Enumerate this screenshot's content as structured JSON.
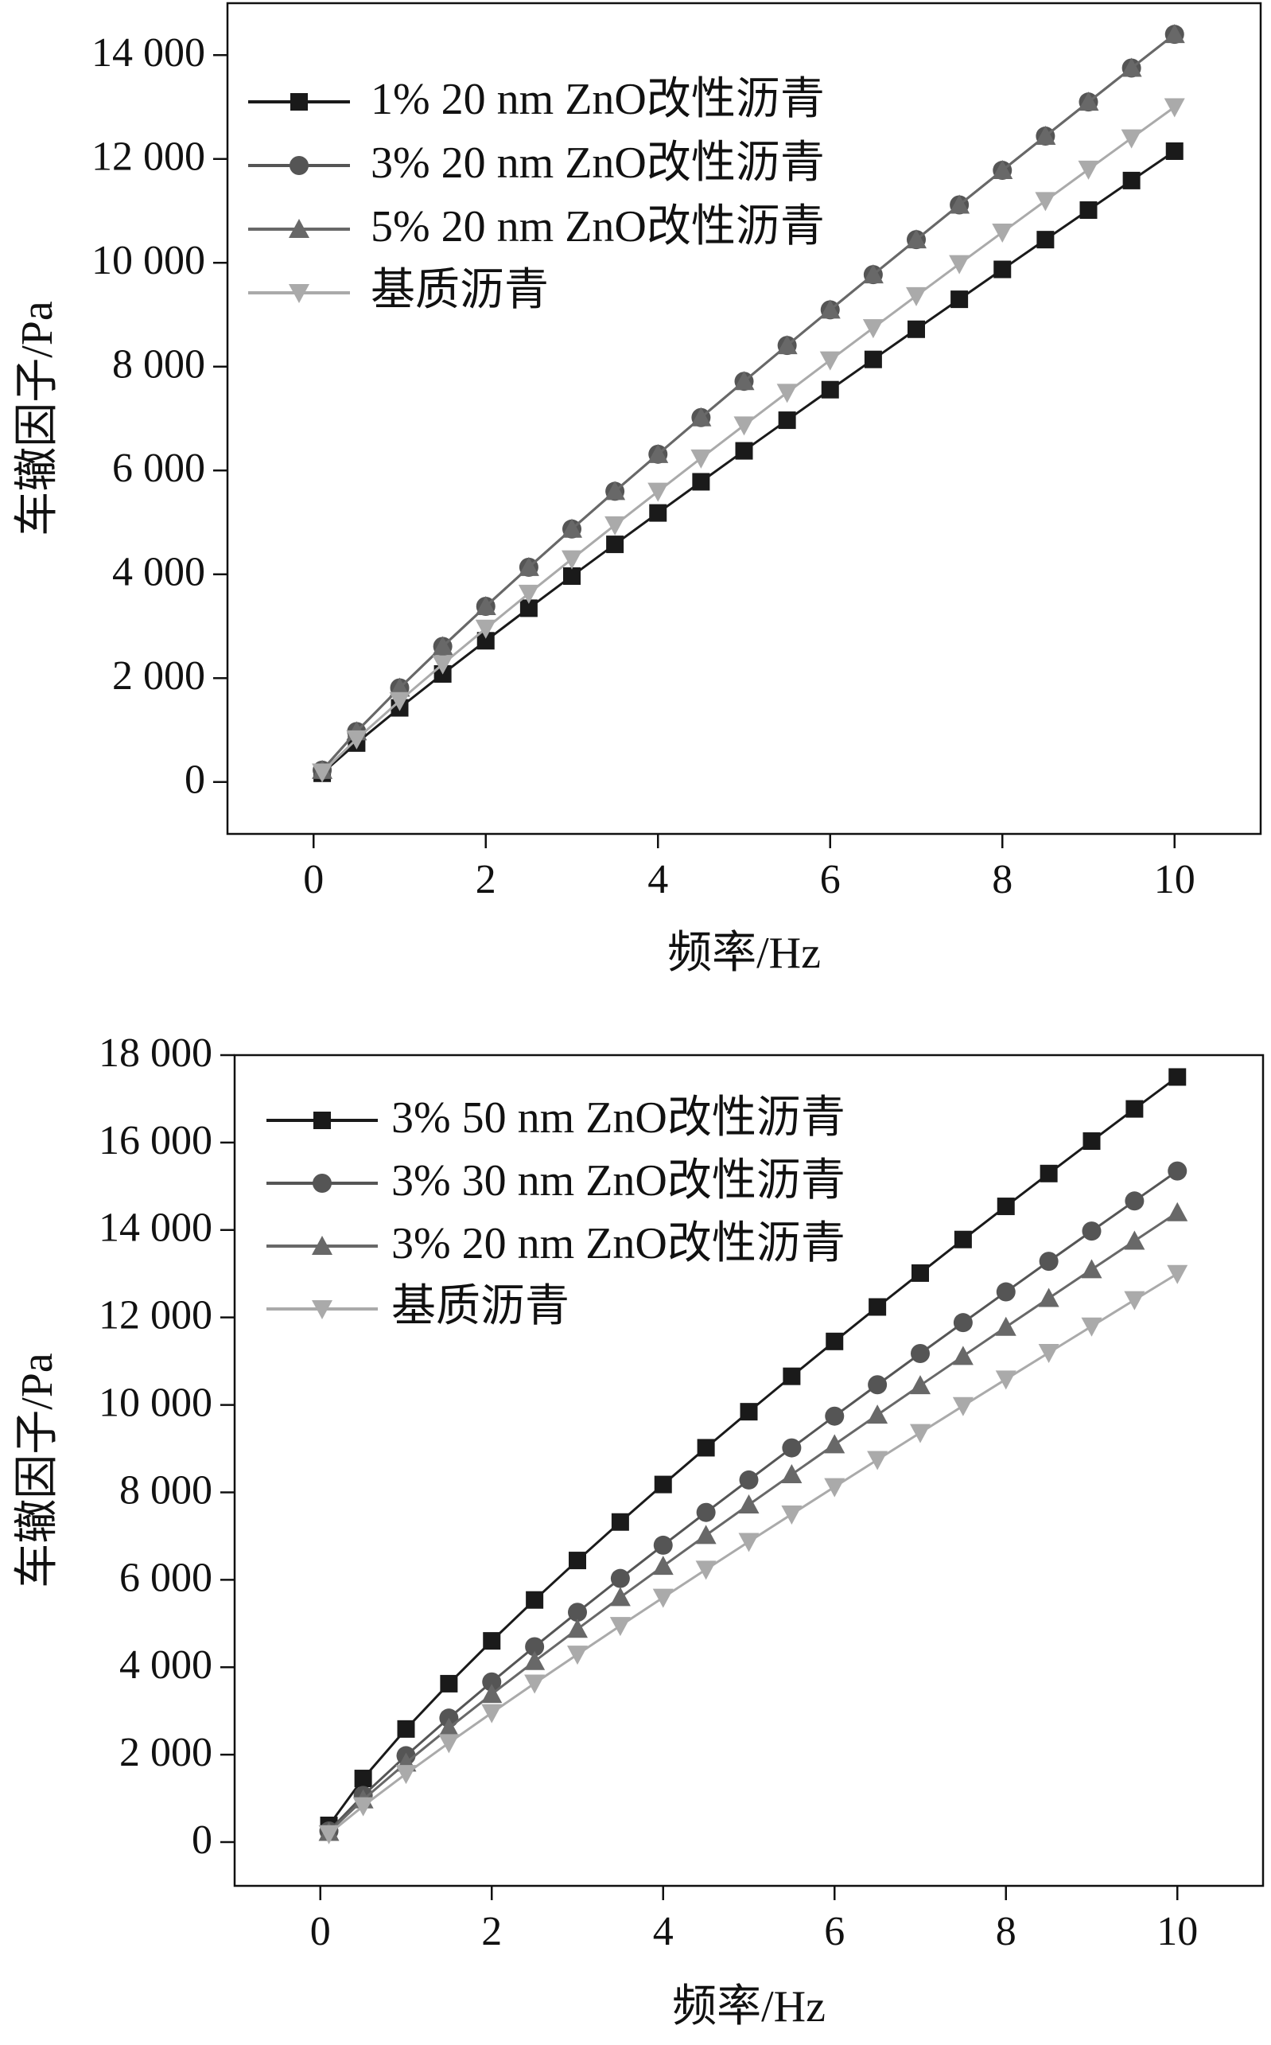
{
  "chart_data": [
    {
      "type": "line",
      "x_label": "频率/Hz",
      "y_label": "车辙因子/Pa",
      "legend": "upper left",
      "x": [
        0.1,
        0.5,
        1,
        1.5,
        2,
        2.5,
        3,
        3.5,
        4,
        4.5,
        5,
        5.5,
        6,
        6.5,
        7,
        7.5,
        8,
        8.5,
        9,
        9.5,
        10
      ],
      "series": [
        {
          "name": "1% 20 nm ZnO改性沥青",
          "color": "#1a1a1a",
          "marker": "square",
          "values": [
            168,
            750,
            1428,
            2081,
            2720,
            3347,
            3966,
            4577,
            5182,
            5782,
            6378,
            6968,
            7556,
            8139,
            8720,
            9297,
            9873,
            10446,
            11015,
            11584,
            12150
          ]
        },
        {
          "name": "3% 20 nm ZnO改性沥青",
          "color": "#555555",
          "marker": "circle",
          "values": [
            228,
            972,
            1813,
            2611,
            3383,
            4136,
            4873,
            5599,
            6313,
            7019,
            7717,
            8408,
            9094,
            9772,
            10446,
            11115,
            11781,
            12440,
            13097,
            13751,
            14400
          ]
        },
        {
          "name": "5% 20 nm ZnO改性沥青",
          "color": "#686868",
          "marker": "triangle-up",
          "values": [
            228,
            972,
            1813,
            2611,
            3383,
            4136,
            4873,
            5599,
            6313,
            7019,
            7717,
            8408,
            9094,
            9772,
            10446,
            11115,
            11781,
            12440,
            13097,
            13751,
            14400
          ]
        },
        {
          "name": "基质沥青",
          "color": "#aaaaaa",
          "marker": "triangle-down",
          "values": [
            188,
            826,
            1563,
            2270,
            2957,
            3631,
            4294,
            4949,
            5595,
            6236,
            6871,
            7500,
            8125,
            8746,
            9363,
            9978,
            10587,
            11194,
            11799,
            12401,
            13000
          ]
        }
      ],
      "xlim": [
        -1,
        11
      ],
      "xticks": [
        0,
        2,
        4,
        6,
        8,
        10
      ],
      "ylim": [
        -1000,
        15000
      ],
      "yticks": [
        0,
        {
          "value": 2000,
          "label": "2 000"
        },
        {
          "value": 4000,
          "label": "4 000"
        },
        {
          "value": 6000,
          "label": "6 000"
        },
        {
          "value": 8000,
          "label": "8 000"
        },
        {
          "value": 10000,
          "label": "10 000"
        },
        {
          "value": 12000,
          "label": "12 000"
        },
        {
          "value": 14000,
          "label": "14 000"
        }
      ]
    },
    {
      "type": "line",
      "x_label": "频率/Hz",
      "y_label": "车辙因子/Pa",
      "legend": "upper left",
      "x": [
        0.1,
        0.5,
        1,
        1.5,
        2,
        2.5,
        3,
        3.5,
        4,
        4.5,
        5,
        5.5,
        6,
        6.5,
        7,
        7.5,
        8,
        8.5,
        9,
        9.5,
        10
      ],
      "series": [
        {
          "name": "3% 50 nm ZnO改性沥青",
          "color": "#1a1a1a",
          "marker": "square",
          "values": [
            383,
            1456,
            2588,
            3624,
            4603,
            5539,
            6442,
            7322,
            8180,
            9020,
            9844,
            10654,
            11452,
            12240,
            13015,
            13783,
            14541,
            15292,
            16034,
            16770,
            17500
          ]
        },
        {
          "name": "3% 30 nm ZnO改性沥青",
          "color": "#555555",
          "marker": "circle",
          "values": [
            255,
            1067,
            1977,
            2837,
            3664,
            4470,
            5257,
            6031,
            6791,
            7541,
            8283,
            9017,
            9743,
            10461,
            11175,
            11882,
            12585,
            13284,
            13976,
            14664,
            15350
          ]
        },
        {
          "name": "3% 20 nm ZnO改性沥青",
          "color": "#686868",
          "marker": "triangle-up",
          "values": [
            228,
            972,
            1813,
            2611,
            3383,
            4136,
            4873,
            5599,
            6313,
            7019,
            7717,
            8408,
            9094,
            9772,
            10446,
            11115,
            11781,
            12440,
            13097,
            13751,
            14400
          ]
        },
        {
          "name": "基质沥青",
          "color": "#aaaaaa",
          "marker": "triangle-down",
          "values": [
            188,
            826,
            1563,
            2270,
            2957,
            3631,
            4294,
            4949,
            5595,
            6236,
            6871,
            7500,
            8125,
            8746,
            9363,
            9978,
            10587,
            11194,
            11799,
            12401,
            13000
          ]
        }
      ],
      "xlim": [
        -1,
        11
      ],
      "xticks": [
        0,
        2,
        4,
        6,
        8,
        10
      ],
      "ylim": [
        -1000,
        18000
      ],
      "yticks": [
        0,
        {
          "value": 2000,
          "label": "2 000"
        },
        {
          "value": 4000,
          "label": "4 000"
        },
        {
          "value": 6000,
          "label": "6 000"
        },
        {
          "value": 8000,
          "label": "8 000"
        },
        {
          "value": 10000,
          "label": "10 000"
        },
        {
          "value": 12000,
          "label": "12 000"
        },
        {
          "value": 14000,
          "label": "14 000"
        },
        {
          "value": 16000,
          "label": "16 000"
        },
        {
          "value": 18000,
          "label": "18 000"
        }
      ]
    }
  ]
}
